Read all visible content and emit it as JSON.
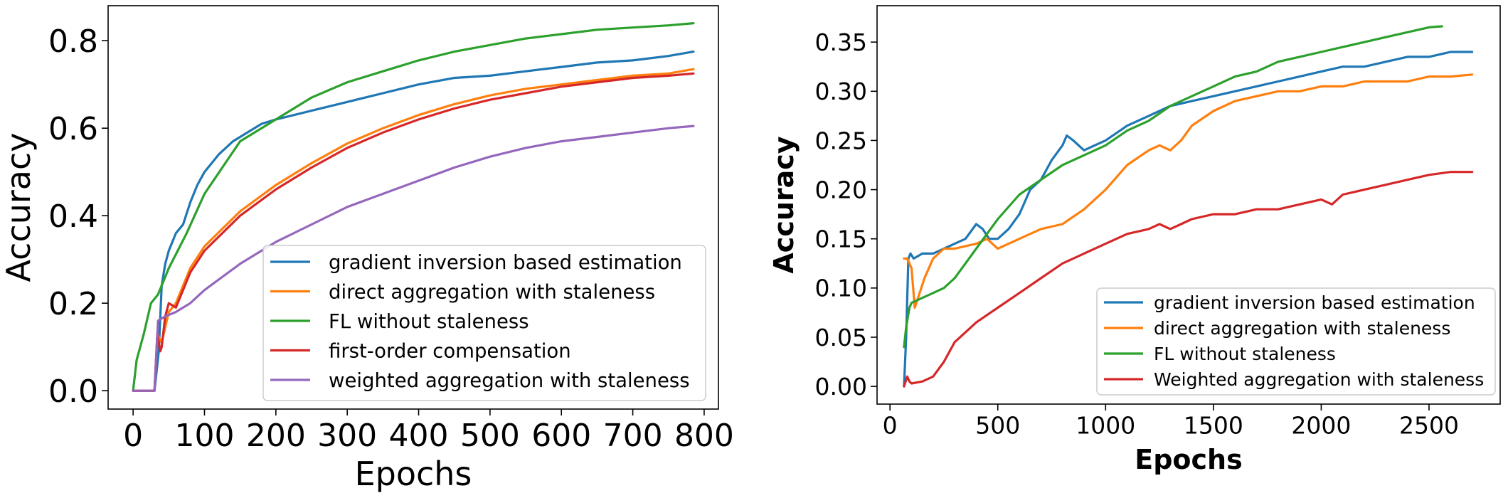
{
  "figure": {
    "background": "#ffffff"
  },
  "chart_data": [
    {
      "type": "line",
      "title": "",
      "xlabel": "Epochs",
      "ylabel": "Accuracy",
      "xlim": [
        -35,
        820
      ],
      "ylim": [
        -0.042,
        0.88
      ],
      "xticks": [
        0,
        100,
        200,
        300,
        400,
        500,
        600,
        700,
        800
      ],
      "yticks": [
        0.0,
        0.2,
        0.4,
        0.6,
        0.8
      ],
      "xtick_labels": [
        "0",
        "100",
        "200",
        "300",
        "400",
        "500",
        "600",
        "700",
        "800"
      ],
      "ytick_labels": [
        "0.0",
        "0.2",
        "0.4",
        "0.6",
        "0.8"
      ],
      "grid": false,
      "legend": "lower-right",
      "series": [
        {
          "name": "gradient inversion based estimation",
          "color": "#1f77b4",
          "x": [
            0,
            30,
            36,
            40,
            45,
            50,
            60,
            70,
            80,
            90,
            100,
            120,
            140,
            160,
            180,
            200,
            250,
            300,
            350,
            400,
            450,
            500,
            550,
            600,
            650,
            700,
            750,
            785
          ],
          "y": [
            0.0,
            0.0,
            0.09,
            0.24,
            0.29,
            0.32,
            0.36,
            0.38,
            0.43,
            0.47,
            0.5,
            0.54,
            0.57,
            0.59,
            0.61,
            0.62,
            0.64,
            0.66,
            0.68,
            0.7,
            0.715,
            0.72,
            0.73,
            0.74,
            0.75,
            0.755,
            0.765,
            0.775
          ]
        },
        {
          "name": "direct aggregation with staleness",
          "color": "#ff7f0e",
          "x": [
            0,
            30,
            34,
            40,
            50,
            60,
            80,
            100,
            150,
            200,
            250,
            300,
            350,
            400,
            450,
            500,
            550,
            600,
            650,
            700,
            750,
            785
          ],
          "y": [
            0.0,
            0.0,
            0.13,
            0.11,
            0.18,
            0.2,
            0.28,
            0.33,
            0.41,
            0.47,
            0.52,
            0.565,
            0.6,
            0.63,
            0.655,
            0.675,
            0.69,
            0.7,
            0.71,
            0.72,
            0.725,
            0.735
          ]
        },
        {
          "name": "FL without staleness",
          "color": "#2ca02c",
          "x": [
            0,
            5,
            15,
            25,
            35,
            50,
            75,
            100,
            150,
            200,
            250,
            300,
            350,
            400,
            450,
            500,
            550,
            600,
            650,
            700,
            750,
            785
          ],
          "y": [
            0.0,
            0.07,
            0.13,
            0.2,
            0.22,
            0.28,
            0.36,
            0.45,
            0.57,
            0.62,
            0.67,
            0.705,
            0.73,
            0.755,
            0.775,
            0.79,
            0.805,
            0.815,
            0.825,
            0.83,
            0.835,
            0.84
          ]
        },
        {
          "name": "first-order compensation",
          "color": "#d62728",
          "x": [
            0,
            30,
            34,
            38,
            40,
            45,
            50,
            60,
            80,
            100,
            150,
            200,
            250,
            300,
            350,
            400,
            450,
            500,
            550,
            600,
            650,
            700,
            750,
            785
          ],
          "y": [
            0.0,
            0.0,
            0.13,
            0.09,
            0.1,
            0.17,
            0.2,
            0.19,
            0.27,
            0.32,
            0.4,
            0.46,
            0.51,
            0.555,
            0.59,
            0.62,
            0.645,
            0.665,
            0.68,
            0.695,
            0.705,
            0.715,
            0.72,
            0.725
          ]
        },
        {
          "name": "weighted aggregation with staleness",
          "color": "#9467bd",
          "x": [
            0,
            30,
            35,
            45,
            60,
            80,
            100,
            150,
            200,
            250,
            300,
            350,
            400,
            450,
            500,
            550,
            600,
            650,
            700,
            750,
            785
          ],
          "y": [
            0.0,
            0.0,
            0.16,
            0.17,
            0.18,
            0.2,
            0.23,
            0.29,
            0.34,
            0.38,
            0.42,
            0.45,
            0.48,
            0.51,
            0.535,
            0.555,
            0.57,
            0.58,
            0.59,
            0.6,
            0.605
          ]
        }
      ]
    },
    {
      "type": "line",
      "title": "",
      "xlabel": "Epochs",
      "ylabel": "Accuracy",
      "xlim": [
        -60,
        2830
      ],
      "ylim": [
        -0.018,
        0.387
      ],
      "xticks": [
        0,
        500,
        1000,
        1500,
        2000,
        2500
      ],
      "yticks": [
        0.0,
        0.05,
        0.1,
        0.15,
        0.2,
        0.25,
        0.3,
        0.35
      ],
      "xtick_labels": [
        "0",
        "500",
        "1000",
        "1500",
        "2000",
        "2500"
      ],
      "ytick_labels": [
        "0.00",
        "0.05",
        "0.10",
        "0.15",
        "0.20",
        "0.25",
        "0.30",
        "0.35"
      ],
      "grid": false,
      "legend": "lower-right",
      "series": [
        {
          "name": "gradient inversion based estimation",
          "color": "#1f77b4",
          "x": [
            65,
            75,
            85,
            95,
            110,
            150,
            200,
            250,
            300,
            350,
            400,
            430,
            460,
            500,
            550,
            600,
            650,
            700,
            750,
            800,
            820,
            850,
            900,
            950,
            1000,
            1100,
            1200,
            1300,
            1400,
            1500,
            1600,
            1700,
            1800,
            1900,
            2000,
            2100,
            2200,
            2300,
            2400,
            2500,
            2600,
            2700
          ],
          "y": [
            0.0,
            0.05,
            0.13,
            0.135,
            0.13,
            0.135,
            0.135,
            0.14,
            0.145,
            0.15,
            0.165,
            0.16,
            0.15,
            0.15,
            0.16,
            0.175,
            0.2,
            0.21,
            0.23,
            0.245,
            0.255,
            0.25,
            0.24,
            0.245,
            0.25,
            0.265,
            0.275,
            0.285,
            0.29,
            0.295,
            0.3,
            0.305,
            0.31,
            0.315,
            0.32,
            0.325,
            0.325,
            0.33,
            0.335,
            0.335,
            0.34,
            0.34
          ]
        },
        {
          "name": "direct aggregation with staleness",
          "color": "#ff7f0e",
          "x": [
            65,
            80,
            100,
            115,
            130,
            160,
            200,
            250,
            300,
            400,
            450,
            500,
            550,
            600,
            700,
            800,
            900,
            1000,
            1100,
            1200,
            1250,
            1300,
            1350,
            1400,
            1500,
            1600,
            1700,
            1800,
            1900,
            2000,
            2100,
            2200,
            2300,
            2400,
            2500,
            2600,
            2700
          ],
          "y": [
            0.13,
            0.13,
            0.12,
            0.08,
            0.09,
            0.11,
            0.13,
            0.14,
            0.14,
            0.145,
            0.15,
            0.14,
            0.145,
            0.15,
            0.16,
            0.165,
            0.18,
            0.2,
            0.225,
            0.24,
            0.245,
            0.24,
            0.25,
            0.265,
            0.28,
            0.29,
            0.295,
            0.3,
            0.3,
            0.305,
            0.305,
            0.31,
            0.31,
            0.31,
            0.315,
            0.315,
            0.317
          ]
        },
        {
          "name": "FL without staleness",
          "color": "#2ca02c",
          "x": [
            65,
            75,
            90,
            100,
            150,
            200,
            250,
            300,
            350,
            400,
            500,
            600,
            700,
            800,
            900,
            1000,
            1100,
            1200,
            1300,
            1400,
            1500,
            1600,
            1700,
            1800,
            1900,
            2000,
            2100,
            2200,
            2300,
            2400,
            2500,
            2560
          ],
          "y": [
            0.04,
            0.06,
            0.08,
            0.085,
            0.09,
            0.095,
            0.1,
            0.11,
            0.125,
            0.14,
            0.17,
            0.195,
            0.21,
            0.225,
            0.235,
            0.245,
            0.26,
            0.27,
            0.285,
            0.295,
            0.305,
            0.315,
            0.32,
            0.33,
            0.335,
            0.34,
            0.345,
            0.35,
            0.355,
            0.36,
            0.365,
            0.366
          ]
        },
        {
          "name": "Weighted aggregation with staleness",
          "color": "#d62728",
          "x": [
            65,
            80,
            90,
            100,
            150,
            200,
            250,
            300,
            350,
            400,
            500,
            600,
            700,
            800,
            900,
            1000,
            1100,
            1200,
            1250,
            1300,
            1350,
            1400,
            1500,
            1600,
            1700,
            1800,
            1900,
            2000,
            2050,
            2100,
            2200,
            2300,
            2400,
            2500,
            2600,
            2700
          ],
          "y": [
            0.0,
            0.01,
            0.005,
            0.003,
            0.005,
            0.01,
            0.025,
            0.045,
            0.055,
            0.065,
            0.08,
            0.095,
            0.11,
            0.125,
            0.135,
            0.145,
            0.155,
            0.16,
            0.165,
            0.16,
            0.165,
            0.17,
            0.175,
            0.175,
            0.18,
            0.18,
            0.185,
            0.19,
            0.185,
            0.195,
            0.2,
            0.205,
            0.21,
            0.215,
            0.218,
            0.218
          ]
        }
      ]
    }
  ]
}
